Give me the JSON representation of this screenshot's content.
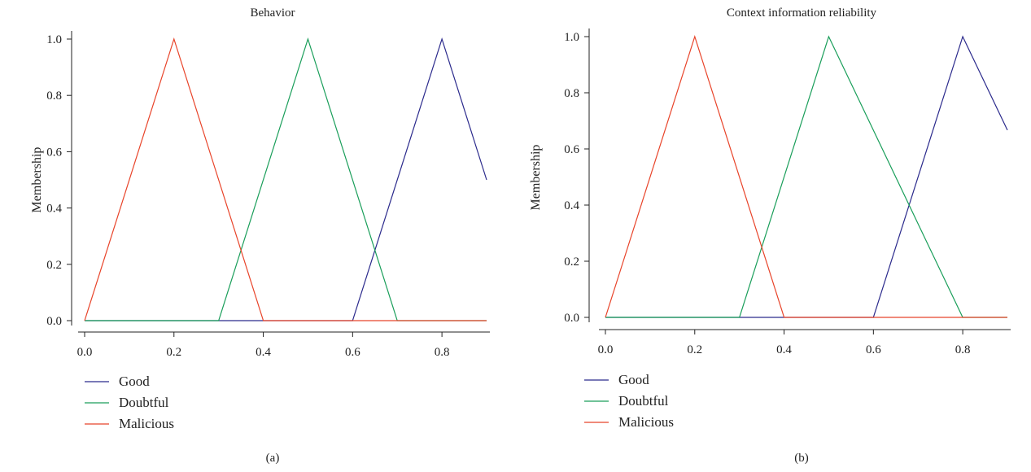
{
  "chart_data": [
    {
      "type": "line",
      "title": "Behavior",
      "xlabel": "",
      "ylabel": "Membership",
      "panel_label": "(a)",
      "xlim": [
        0,
        0.9
      ],
      "ylim": [
        0,
        1.0
      ],
      "xticks": [
        "0.0",
        "0.2",
        "0.4",
        "0.6",
        "0.8"
      ],
      "yticks": [
        "0.0",
        "0.2",
        "0.4",
        "0.6",
        "0.8",
        "1.0"
      ],
      "grid": false,
      "legend_position": "below",
      "series": [
        {
          "name": "Good",
          "color": "#2b2a8c",
          "x": [
            0.0,
            0.6,
            0.8,
            0.9
          ],
          "y": [
            0.0,
            0.0,
            1.0,
            0.5
          ]
        },
        {
          "name": "Doubtful",
          "color": "#1a9e5a",
          "x": [
            0.0,
            0.3,
            0.5,
            0.7,
            0.9
          ],
          "y": [
            0.0,
            0.0,
            1.0,
            0.0,
            0.0
          ]
        },
        {
          "name": "Malicious",
          "color": "#e8442a",
          "x": [
            0.0,
            0.2,
            0.4,
            0.9
          ],
          "y": [
            0.0,
            1.0,
            0.0,
            0.0
          ]
        }
      ]
    },
    {
      "type": "line",
      "title": "Context information reliability",
      "xlabel": "",
      "ylabel": "Membership",
      "panel_label": "(b)",
      "xlim": [
        0,
        0.9
      ],
      "ylim": [
        0,
        1.0
      ],
      "xticks": [
        "0.0",
        "0.2",
        "0.4",
        "0.6",
        "0.8"
      ],
      "yticks": [
        "0.0",
        "0.2",
        "0.4",
        "0.6",
        "0.8",
        "1.0"
      ],
      "grid": false,
      "legend_position": "below",
      "series": [
        {
          "name": "Good",
          "color": "#2b2a8c",
          "x": [
            0.0,
            0.6,
            0.8,
            0.9
          ],
          "y": [
            0.0,
            0.0,
            1.0,
            0.667
          ]
        },
        {
          "name": "Doubtful",
          "color": "#1a9e5a",
          "x": [
            0.0,
            0.3,
            0.5,
            0.8,
            0.9
          ],
          "y": [
            0.0,
            0.0,
            1.0,
            0.0,
            0.0
          ]
        },
        {
          "name": "Malicious",
          "color": "#e8442a",
          "x": [
            0.0,
            0.2,
            0.4,
            0.9
          ],
          "y": [
            0.0,
            1.0,
            0.0,
            0.0
          ]
        }
      ]
    }
  ]
}
